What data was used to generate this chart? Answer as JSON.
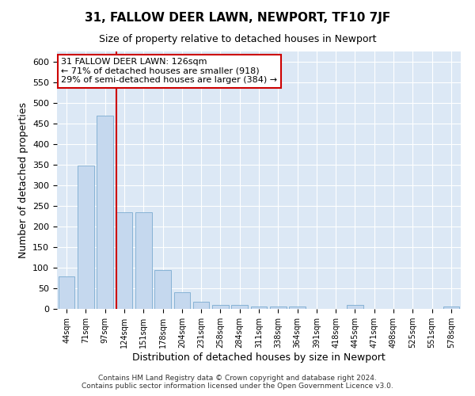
{
  "title": "31, FALLOW DEER LAWN, NEWPORT, TF10 7JF",
  "subtitle": "Size of property relative to detached houses in Newport",
  "xlabel": "Distribution of detached houses by size in Newport",
  "ylabel": "Number of detached properties",
  "categories": [
    "44sqm",
    "71sqm",
    "97sqm",
    "124sqm",
    "151sqm",
    "178sqm",
    "204sqm",
    "231sqm",
    "258sqm",
    "284sqm",
    "311sqm",
    "338sqm",
    "364sqm",
    "391sqm",
    "418sqm",
    "445sqm",
    "471sqm",
    "498sqm",
    "525sqm",
    "551sqm",
    "578sqm"
  ],
  "values": [
    78,
    348,
    470,
    235,
    235,
    95,
    40,
    18,
    10,
    10,
    5,
    5,
    5,
    0,
    0,
    10,
    0,
    0,
    0,
    0,
    5
  ],
  "bar_color": "#c5d8ee",
  "bar_edge_color": "#7aabd0",
  "redline_index": 3,
  "annotation_line1": "31 FALLOW DEER LAWN: 126sqm",
  "annotation_line2": "← 71% of detached houses are smaller (918)",
  "annotation_line3": "29% of semi-detached houses are larger (384) →",
  "annotation_box_facecolor": "#ffffff",
  "annotation_box_edgecolor": "#cc0000",
  "redline_color": "#cc0000",
  "footer_text": "Contains HM Land Registry data © Crown copyright and database right 2024.\nContains public sector information licensed under the Open Government Licence v3.0.",
  "ylim": [
    0,
    625
  ],
  "yticks": [
    0,
    50,
    100,
    150,
    200,
    250,
    300,
    350,
    400,
    450,
    500,
    550,
    600
  ],
  "plot_bg_color": "#dce8f5",
  "grid_color": "#ffffff",
  "title_fontsize": 11,
  "subtitle_fontsize": 9,
  "axis_label_fontsize": 9,
  "tick_fontsize": 8,
  "annotation_fontsize": 8
}
